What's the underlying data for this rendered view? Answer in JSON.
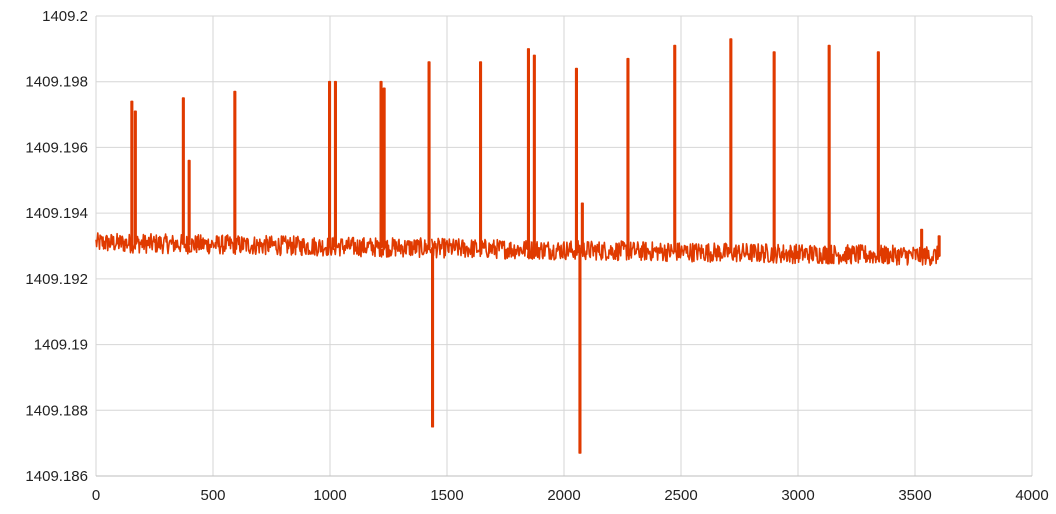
{
  "chart_data": {
    "type": "line",
    "title": "",
    "xlabel": "",
    "ylabel": "",
    "xlim": [
      0,
      4000
    ],
    "ylim": [
      1409.186,
      1409.2
    ],
    "grid": true,
    "legend": "none",
    "x_ticks": [
      "0",
      "500",
      "1000",
      "1500",
      "2000",
      "2500",
      "3000",
      "3500",
      "4000"
    ],
    "y_ticks": [
      "1409.2",
      "1409.198",
      "1409.196",
      "1409.194",
      "1409.192",
      "1409.19",
      "1409.188",
      "1409.186"
    ],
    "series": [
      {
        "name": "",
        "color": "#e03a00",
        "x_range": [
          0,
          3600
        ],
        "baseline_start": 1409.1931,
        "baseline_end": 1409.1927,
        "noise_amplitude": 0.0003,
        "spikes": [
          {
            "x": 150,
            "y": 1409.1974
          },
          {
            "x": 165,
            "y": 1409.1971
          },
          {
            "x": 370,
            "y": 1409.1975
          },
          {
            "x": 395,
            "y": 1409.1956
          },
          {
            "x": 590,
            "y": 1409.1977
          },
          {
            "x": 995,
            "y": 1409.198
          },
          {
            "x": 1020,
            "y": 1409.198
          },
          {
            "x": 1215,
            "y": 1409.198
          },
          {
            "x": 1228,
            "y": 1409.1978
          },
          {
            "x": 1420,
            "y": 1409.1986
          },
          {
            "x": 1435,
            "y": 1409.1875
          },
          {
            "x": 1640,
            "y": 1409.1986
          },
          {
            "x": 1845,
            "y": 1409.199
          },
          {
            "x": 1870,
            "y": 1409.1988
          },
          {
            "x": 2050,
            "y": 1409.1984
          },
          {
            "x": 2065,
            "y": 1409.1867
          },
          {
            "x": 2075,
            "y": 1409.1943
          },
          {
            "x": 2270,
            "y": 1409.1987
          },
          {
            "x": 2470,
            "y": 1409.1991
          },
          {
            "x": 2710,
            "y": 1409.1993
          },
          {
            "x": 2895,
            "y": 1409.1989
          },
          {
            "x": 3130,
            "y": 1409.1991
          },
          {
            "x": 3340,
            "y": 1409.1989
          },
          {
            "x": 3525,
            "y": 1409.1935
          },
          {
            "x": 3600,
            "y": 1409.1933
          }
        ]
      }
    ]
  }
}
